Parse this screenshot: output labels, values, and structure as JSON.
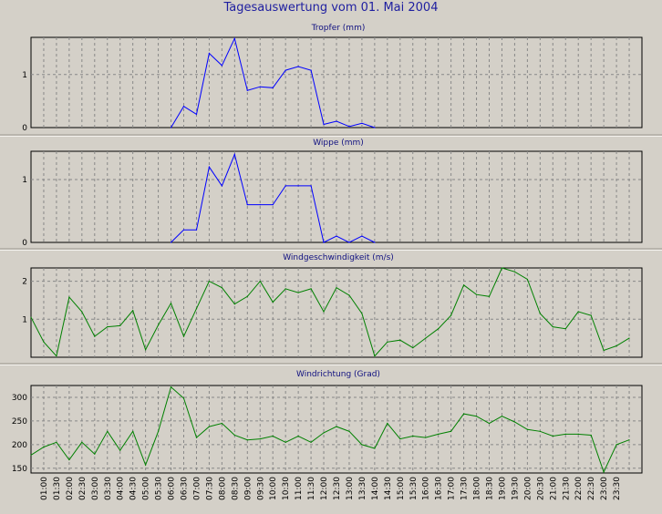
{
  "title": "Tagesauswertung vom 01. Mai 2004",
  "x_ticks": [
    "01:00",
    "01:30",
    "02:00",
    "02:30",
    "03:00",
    "03:30",
    "04:00",
    "04:30",
    "05:00",
    "05:30",
    "06:00",
    "06:30",
    "07:00",
    "07:30",
    "08:00",
    "08:30",
    "09:00",
    "09:30",
    "10:00",
    "10:30",
    "11:00",
    "11:30",
    "12:00",
    "12:30",
    "13:00",
    "13:30",
    "14:00",
    "14:30",
    "15:00",
    "15:30",
    "16:00",
    "16:30",
    "17:00",
    "17:30",
    "18:00",
    "18:30",
    "19:00",
    "19:30",
    "20:00",
    "20:30",
    "21:00",
    "21:30",
    "22:00",
    "22:30",
    "23:00",
    "23:30"
  ],
  "chart_data": [
    {
      "type": "line",
      "title": "Tropfer (mm)",
      "color": "#0000ff",
      "ylim": [
        0,
        1.7
      ],
      "yticks": [
        0,
        1
      ],
      "x": [
        "06:00",
        "06:30",
        "07:00",
        "07:30",
        "08:00",
        "08:30",
        "09:00",
        "09:30",
        "10:00",
        "10:30",
        "11:00",
        "11:30",
        "12:00",
        "12:30",
        "13:00",
        "13:30",
        "14:00"
      ],
      "values": [
        0,
        0.4,
        0.25,
        1.4,
        1.17,
        1.68,
        0.7,
        0.77,
        0.75,
        1.08,
        1.15,
        1.08,
        0.06,
        0.12,
        0.02,
        0.08,
        0
      ]
    },
    {
      "type": "line",
      "title": "Wippe (mm)",
      "color": "#0000ff",
      "ylim": [
        0,
        1.45
      ],
      "yticks": [
        0,
        1
      ],
      "x": [
        "06:00",
        "06:30",
        "07:00",
        "07:30",
        "08:00",
        "08:30",
        "09:00",
        "09:30",
        "10:00",
        "10:30",
        "11:00",
        "11:30",
        "12:00",
        "12:30",
        "13:00",
        "13:30",
        "14:00"
      ],
      "values": [
        0,
        0.2,
        0.2,
        1.2,
        0.9,
        1.4,
        0.6,
        0.6,
        0.6,
        0.9,
        0.9,
        0.9,
        0,
        0.1,
        0,
        0.1,
        0
      ]
    },
    {
      "type": "line",
      "title": "Windgeschwindigkeit (m/s)",
      "color": "#008000",
      "ylim": [
        0,
        2.35
      ],
      "yticks": [
        1,
        2
      ],
      "x": [
        "00:30",
        "01:00",
        "01:30",
        "02:00",
        "02:30",
        "03:00",
        "03:30",
        "04:00",
        "04:30",
        "05:00",
        "05:30",
        "06:00",
        "06:30",
        "07:00",
        "07:30",
        "08:00",
        "08:30",
        "09:00",
        "09:30",
        "10:00",
        "10:30",
        "11:00",
        "11:30",
        "12:00",
        "12:30",
        "13:00",
        "13:30",
        "14:00",
        "14:30",
        "15:00",
        "15:30",
        "16:00",
        "16:30",
        "17:00",
        "17:30",
        "18:00",
        "18:30",
        "19:00",
        "19:30",
        "20:00",
        "20:30",
        "21:00",
        "21:30",
        "22:00",
        "22:30",
        "23:00",
        "23:30",
        "24:00"
      ],
      "values": [
        1.05,
        0.4,
        0.03,
        1.58,
        1.2,
        0.55,
        0.8,
        0.83,
        1.23,
        0.2,
        0.85,
        1.42,
        0.55,
        1.28,
        2.0,
        1.83,
        1.4,
        1.6,
        2.0,
        1.45,
        1.8,
        1.7,
        1.8,
        1.2,
        1.83,
        1.63,
        1.15,
        0.03,
        0.4,
        0.45,
        0.25,
        0.5,
        0.75,
        1.1,
        1.9,
        1.65,
        1.6,
        2.35,
        2.25,
        2.05,
        1.15,
        0.8,
        0.75,
        1.2,
        1.1,
        0.18,
        0.3,
        0.5
      ]
    },
    {
      "type": "line",
      "title": "Windrichtung (Grad)",
      "color": "#008000",
      "ylim": [
        140,
        325
      ],
      "yticks": [
        150,
        200,
        250,
        300
      ],
      "x": [
        "00:30",
        "01:00",
        "01:30",
        "02:00",
        "02:30",
        "03:00",
        "03:30",
        "04:00",
        "04:30",
        "05:00",
        "05:30",
        "06:00",
        "06:30",
        "07:00",
        "07:30",
        "08:00",
        "08:30",
        "09:00",
        "09:30",
        "10:00",
        "10:30",
        "11:00",
        "11:30",
        "12:00",
        "12:30",
        "13:00",
        "13:30",
        "14:00",
        "14:30",
        "15:00",
        "15:30",
        "16:00",
        "16:30",
        "17:00",
        "17:30",
        "18:00",
        "18:30",
        "19:00",
        "19:30",
        "20:00",
        "20:30",
        "21:00",
        "21:30",
        "22:00",
        "22:30",
        "23:00",
        "23:30",
        "24:00"
      ],
      "values": [
        178,
        195,
        205,
        168,
        205,
        180,
        228,
        188,
        228,
        157,
        228,
        322,
        298,
        215,
        238,
        245,
        220,
        210,
        212,
        218,
        205,
        218,
        205,
        225,
        238,
        228,
        200,
        192,
        245,
        212,
        218,
        215,
        222,
        228,
        265,
        260,
        245,
        260,
        248,
        232,
        228,
        218,
        222,
        222,
        220,
        142,
        200,
        210
      ]
    }
  ]
}
